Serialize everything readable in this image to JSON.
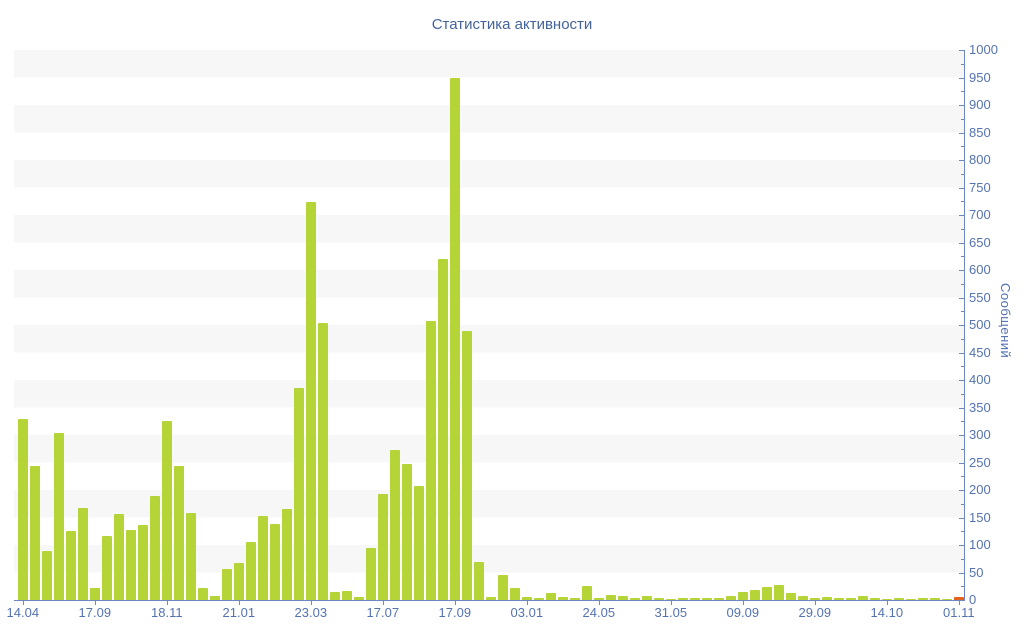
{
  "chart_data": {
    "type": "bar",
    "title": "Статистика активности",
    "ylabel": "Сообщений",
    "xlabel": "",
    "ylim": [
      0,
      1000
    ],
    "y_tick_step": 50,
    "y_minor_tick_step": 25,
    "grid": "horizontal-alternating-bands",
    "legend": "none",
    "y_tick_labels": [
      "0",
      "50",
      "100",
      "150",
      "200",
      "250",
      "300",
      "350",
      "400",
      "450",
      "500",
      "550",
      "600",
      "650",
      "700",
      "750",
      "800",
      "850",
      "900",
      "950",
      "1000"
    ],
    "x_tick_labels": [
      {
        "index": 0,
        "label": "14.04"
      },
      {
        "index": 6,
        "label": "17.09"
      },
      {
        "index": 12,
        "label": "18.11"
      },
      {
        "index": 18,
        "label": "21.01"
      },
      {
        "index": 24,
        "label": "23.03"
      },
      {
        "index": 30,
        "label": "17.07"
      },
      {
        "index": 36,
        "label": "17.09"
      },
      {
        "index": 42,
        "label": "03.01"
      },
      {
        "index": 48,
        "label": "24.05"
      },
      {
        "index": 54,
        "label": "31.05"
      },
      {
        "index": 60,
        "label": "09.09"
      },
      {
        "index": 66,
        "label": "29.09"
      },
      {
        "index": 72,
        "label": "14.10"
      },
      {
        "index": 78,
        "label": "01.11"
      }
    ],
    "values": [
      330,
      243,
      90,
      303,
      126,
      167,
      22,
      116,
      156,
      128,
      136,
      190,
      325,
      243,
      158,
      21,
      8,
      57,
      67,
      105,
      152,
      139,
      166,
      385,
      724,
      504,
      15,
      16,
      6,
      94,
      192,
      272,
      247,
      207,
      507,
      620,
      950,
      489,
      70,
      5,
      45,
      22,
      5,
      4,
      12,
      5,
      4,
      25,
      4,
      10,
      7,
      4,
      7,
      3,
      2,
      4,
      4,
      3,
      4,
      7,
      15,
      18,
      24,
      28,
      13,
      7,
      4,
      5,
      3,
      4,
      7,
      3,
      2,
      3,
      2,
      3,
      3,
      2,
      6
    ],
    "highlight": {
      "index": 78,
      "color": "#e2611e"
    },
    "colors": {
      "bar": "#b4d437",
      "highlight_bar": "#e2611e",
      "axis": "#6d87c0",
      "tick_text": "#5473b0",
      "title_text": "#44639b",
      "band": "#f7f7f7",
      "background": "#ffffff"
    }
  }
}
